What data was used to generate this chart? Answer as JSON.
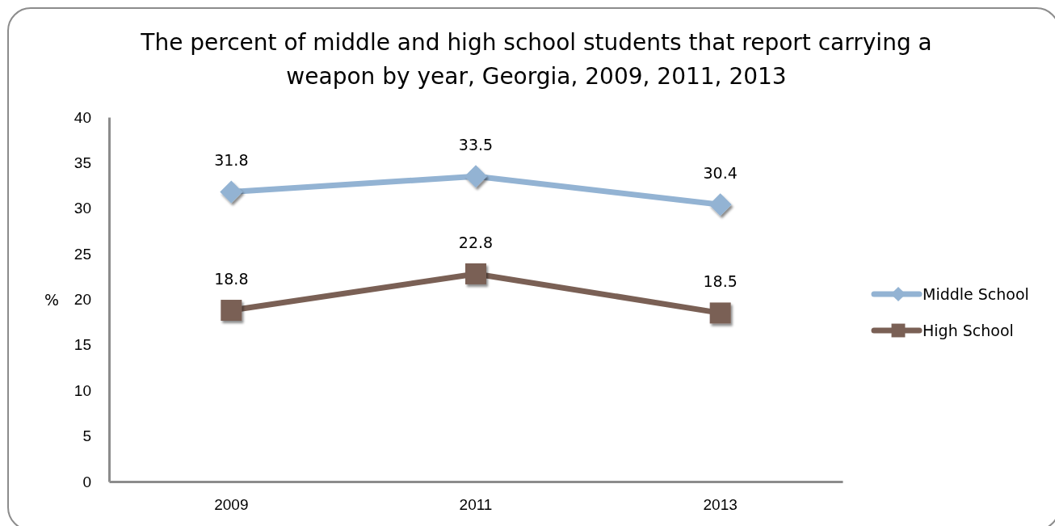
{
  "chart_data": {
    "type": "line",
    "title": "The percent of middle and high school students that report carrying a weapon by year, Georgia, 2009, 2011, 2013",
    "ylabel": "%",
    "categories": [
      "2009",
      "2011",
      "2013"
    ],
    "series": [
      {
        "name": "Middle School",
        "color": "#93b3d3",
        "marker": "diamond",
        "values": [
          31.8,
          33.5,
          30.4
        ]
      },
      {
        "name": "High School",
        "color": "#7a6055",
        "marker": "square",
        "values": [
          18.8,
          22.8,
          18.5
        ]
      }
    ],
    "ylim": [
      0,
      40
    ],
    "yticks": [
      0,
      5,
      10,
      15,
      20,
      25,
      30,
      35,
      40
    ],
    "data_labels": true,
    "legend": "right",
    "line_style": "solid"
  }
}
